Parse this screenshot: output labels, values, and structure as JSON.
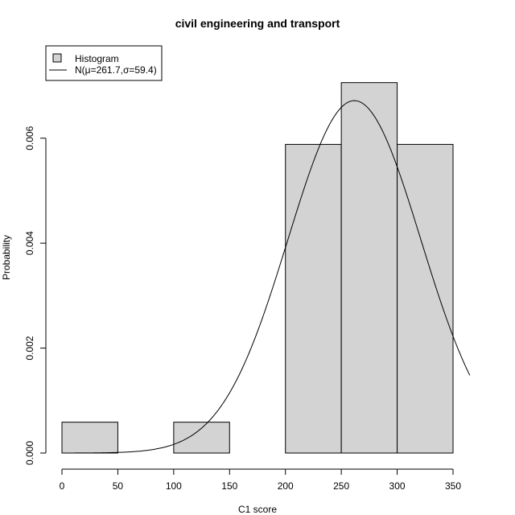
{
  "chart_data": {
    "type": "bar",
    "title": "civil engineering and transport",
    "xlabel": "C1 score",
    "ylabel": "Probability",
    "xlim": [
      0,
      350
    ],
    "ylim": [
      0,
      0.0071
    ],
    "x_ticks": [
      0,
      50,
      100,
      150,
      200,
      250,
      300,
      350
    ],
    "x_tick_labels": [
      "0",
      "50",
      "100",
      "150",
      "200",
      "250",
      "300",
      "350"
    ],
    "y_ticks": [
      0,
      0.002,
      0.004,
      0.006
    ],
    "y_tick_labels": [
      "0.000",
      "0.002",
      "0.004",
      "0.006"
    ],
    "bins": [
      {
        "from": 0,
        "to": 50,
        "value": 0.000588
      },
      {
        "from": 50,
        "to": 100,
        "value": 0
      },
      {
        "from": 100,
        "to": 150,
        "value": 0.000588
      },
      {
        "from": 150,
        "to": 200,
        "value": 0
      },
      {
        "from": 200,
        "to": 250,
        "value": 0.005882
      },
      {
        "from": 250,
        "to": 300,
        "value": 0.007059
      },
      {
        "from": 300,
        "to": 350,
        "value": 0.005882
      }
    ],
    "normal_curve": {
      "mu": 261.7,
      "sigma": 59.4,
      "x_range": [
        0,
        365
      ]
    },
    "legend": {
      "position": "top-left",
      "entries": [
        {
          "label": "Histogram",
          "kind": "box"
        },
        {
          "label": "N(μ=261.7,σ=59.4)",
          "kind": "line"
        }
      ]
    },
    "colors": {
      "bar_fill": "#d3d3d3",
      "bar_stroke": "#000000",
      "curve": "#000000"
    },
    "grid": false
  }
}
